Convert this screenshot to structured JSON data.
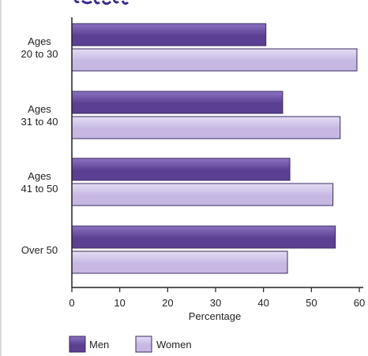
{
  "chart_data": {
    "type": "bar",
    "orientation": "horizontal",
    "title": "",
    "categories": [
      [
        "Ages",
        "20 to 30"
      ],
      [
        "Ages",
        "31 to 40"
      ],
      [
        "Ages",
        "41 to 50"
      ],
      [
        "Over 50"
      ]
    ],
    "series": [
      {
        "name": "Men",
        "values": [
          40.5,
          44,
          45.5,
          55
        ]
      },
      {
        "name": "Women",
        "values": [
          59.5,
          56,
          54.5,
          45
        ]
      }
    ],
    "xlabel": "Percentage",
    "ylabel": "",
    "xlim": [
      0,
      60
    ],
    "xticks": [
      0,
      10,
      20,
      30,
      40,
      50,
      60
    ],
    "grid": false,
    "legend": "bottom",
    "colors": {
      "men_fill": "#5b3f92",
      "men_fill_light": "#8c73c2",
      "women_fill": "#c6b8e3",
      "women_fill_light": "#e4dcf3",
      "bar_stroke": "#3a2a63",
      "axis": "#222222",
      "title_fragment": "#3b2d8c"
    }
  }
}
